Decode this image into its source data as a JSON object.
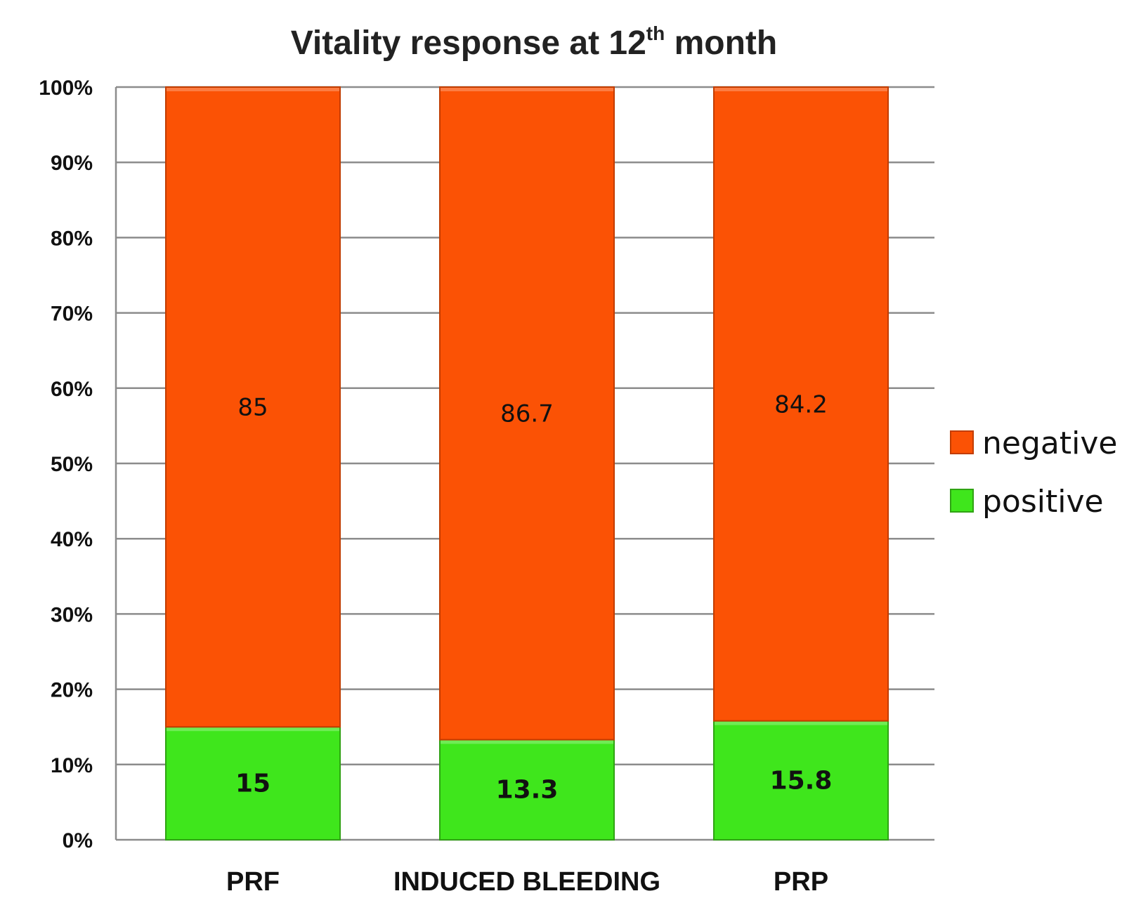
{
  "chart_data": {
    "type": "bar",
    "stacked": true,
    "title": {
      "main": "Vitality response at 12",
      "sup": "th",
      "tail": " month"
    },
    "categories": [
      "PRF",
      "INDUCED BLEEDING",
      "PRP"
    ],
    "series": [
      {
        "name": "positive",
        "values": [
          15,
          13.3,
          15.8
        ],
        "labels": [
          "15",
          "13.3",
          "15.8"
        ],
        "color": "#3fe61c",
        "edge": "#2fa313"
      },
      {
        "name": "negative",
        "values": [
          85,
          86.7,
          84.2
        ],
        "labels": [
          "85",
          "86.7",
          "84.2"
        ],
        "color": "#fb5205",
        "edge": "#c23d00"
      }
    ],
    "y_ticks": [
      "0%",
      "10%",
      "20%",
      "30%",
      "40%",
      "50%",
      "60%",
      "70%",
      "80%",
      "90%",
      "100%"
    ],
    "ylim": [
      0,
      100
    ],
    "grid": true,
    "legend": {
      "placement": "right",
      "order": [
        "negative",
        "positive"
      ]
    }
  }
}
